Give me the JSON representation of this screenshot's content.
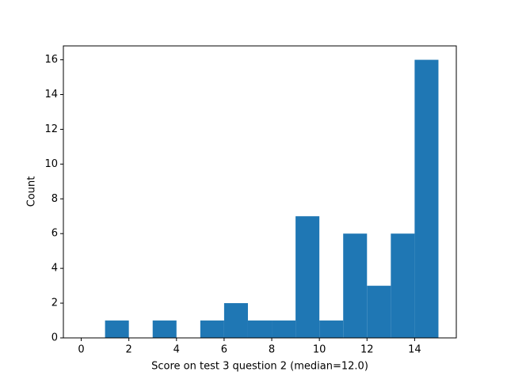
{
  "chart_data": {
    "type": "histogram",
    "xlabel": "Score on test 3 question 2 (median=12.0)",
    "ylabel": "Count",
    "bins": [
      0,
      1,
      2,
      3,
      4,
      5,
      6,
      7,
      8,
      9,
      10,
      11,
      12,
      13,
      14,
      15
    ],
    "values": [
      0,
      1,
      0,
      1,
      0,
      1,
      2,
      1,
      1,
      7,
      1,
      6,
      3,
      6,
      16
    ],
    "color": "#1f77b4",
    "xlim": [
      -0.75,
      15.75
    ],
    "xticks": [
      0,
      2,
      4,
      6,
      8,
      10,
      12,
      14
    ],
    "ylim": [
      0,
      16.8
    ],
    "yticks": [
      0,
      2,
      4,
      6,
      8,
      10,
      12,
      14,
      16
    ]
  }
}
